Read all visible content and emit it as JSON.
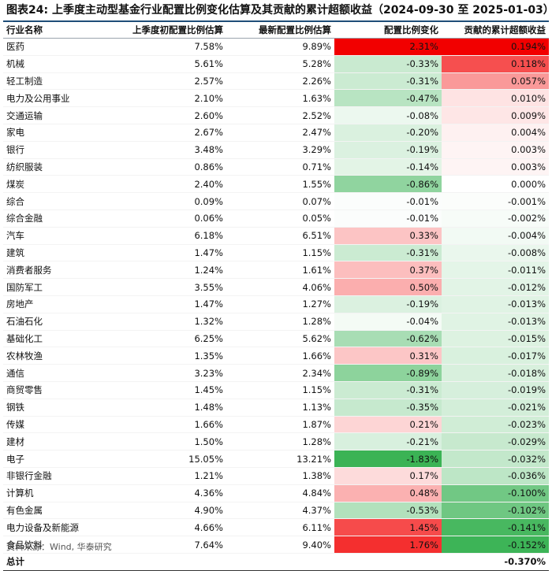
{
  "title": "图表24:  上季度主动型基金行业配置比例变化估算及其贡献的累计超额收益（2024-09-30 至 2025-01-03）",
  "headers": [
    "行业名称",
    "上季度初配置比例估算",
    "最新配置比例估算",
    "配置比例变化",
    "贡献的累计超额收益"
  ],
  "rows": [
    {
      "name": "医药",
      "prev": "7.58%",
      "latest": "9.89%",
      "change": "2.31%",
      "contrib": "0.194%"
    },
    {
      "name": "机械",
      "prev": "5.61%",
      "latest": "5.28%",
      "change": "-0.33%",
      "contrib": "0.118%"
    },
    {
      "name": "轻工制造",
      "prev": "2.57%",
      "latest": "2.26%",
      "change": "-0.31%",
      "contrib": "0.057%"
    },
    {
      "name": "电力及公用事业",
      "prev": "2.10%",
      "latest": "1.63%",
      "change": "-0.47%",
      "contrib": "0.010%"
    },
    {
      "name": "交通运输",
      "prev": "2.60%",
      "latest": "2.52%",
      "change": "-0.08%",
      "contrib": "0.009%"
    },
    {
      "name": "家电",
      "prev": "2.67%",
      "latest": "2.47%",
      "change": "-0.20%",
      "contrib": "0.004%"
    },
    {
      "name": "银行",
      "prev": "3.48%",
      "latest": "3.29%",
      "change": "-0.19%",
      "contrib": "0.003%"
    },
    {
      "name": "纺织服装",
      "prev": "0.86%",
      "latest": "0.71%",
      "change": "-0.14%",
      "contrib": "0.003%"
    },
    {
      "name": "煤炭",
      "prev": "2.40%",
      "latest": "1.55%",
      "change": "-0.86%",
      "contrib": "0.000%"
    },
    {
      "name": "综合",
      "prev": "0.09%",
      "latest": "0.07%",
      "change": "-0.01%",
      "contrib": "-0.001%"
    },
    {
      "name": "综合金融",
      "prev": "0.06%",
      "latest": "0.05%",
      "change": "-0.01%",
      "contrib": "-0.002%"
    },
    {
      "name": "汽车",
      "prev": "6.18%",
      "latest": "6.51%",
      "change": "0.33%",
      "contrib": "-0.004%"
    },
    {
      "name": "建筑",
      "prev": "1.47%",
      "latest": "1.15%",
      "change": "-0.31%",
      "contrib": "-0.008%"
    },
    {
      "name": "消费者服务",
      "prev": "1.24%",
      "latest": "1.61%",
      "change": "0.37%",
      "contrib": "-0.011%"
    },
    {
      "name": "国防军工",
      "prev": "3.55%",
      "latest": "4.06%",
      "change": "0.50%",
      "contrib": "-0.012%"
    },
    {
      "name": "房地产",
      "prev": "1.47%",
      "latest": "1.27%",
      "change": "-0.19%",
      "contrib": "-0.013%"
    },
    {
      "name": "石油石化",
      "prev": "1.32%",
      "latest": "1.28%",
      "change": "-0.04%",
      "contrib": "-0.013%"
    },
    {
      "name": "基础化工",
      "prev": "6.25%",
      "latest": "5.62%",
      "change": "-0.62%",
      "contrib": "-0.015%"
    },
    {
      "name": "农林牧渔",
      "prev": "1.35%",
      "latest": "1.66%",
      "change": "0.31%",
      "contrib": "-0.017%"
    },
    {
      "name": "通信",
      "prev": "3.23%",
      "latest": "2.34%",
      "change": "-0.89%",
      "contrib": "-0.018%"
    },
    {
      "name": "商贸零售",
      "prev": "1.45%",
      "latest": "1.15%",
      "change": "-0.31%",
      "contrib": "-0.019%"
    },
    {
      "name": "钢铁",
      "prev": "1.48%",
      "latest": "1.13%",
      "change": "-0.35%",
      "contrib": "-0.021%"
    },
    {
      "name": "传媒",
      "prev": "1.66%",
      "latest": "1.87%",
      "change": "0.21%",
      "contrib": "-0.023%"
    },
    {
      "name": "建材",
      "prev": "1.50%",
      "latest": "1.28%",
      "change": "-0.21%",
      "contrib": "-0.029%"
    },
    {
      "name": "电子",
      "prev": "15.05%",
      "latest": "13.21%",
      "change": "-1.83%",
      "contrib": "-0.032%"
    },
    {
      "name": "非银行金融",
      "prev": "1.21%",
      "latest": "1.38%",
      "change": "0.17%",
      "contrib": "-0.036%"
    },
    {
      "name": "计算机",
      "prev": "4.36%",
      "latest": "4.84%",
      "change": "0.48%",
      "contrib": "-0.100%"
    },
    {
      "name": "有色金属",
      "prev": "4.90%",
      "latest": "4.37%",
      "change": "-0.53%",
      "contrib": "-0.102%"
    },
    {
      "name": "电力设备及新能源",
      "prev": "4.66%",
      "latest": "6.11%",
      "change": "1.45%",
      "contrib": "-0.141%"
    },
    {
      "name": "食品饮料",
      "prev": "7.64%",
      "latest": "9.40%",
      "change": "1.76%",
      "contrib": "-0.152%"
    }
  ],
  "total": {
    "label": "总计",
    "contrib": "-0.370%"
  },
  "source": "资料来源：Wind, 华泰研究",
  "colors": {
    "change_max_positive": "#f20000",
    "change_max_negative": "#16a535",
    "contrib_max_positive": "#f20000",
    "contrib_max_negative": "#16a535",
    "title_rule": "#1f4e79"
  },
  "scales": {
    "change_abs_max": 2.31,
    "contrib_abs_max": 0.194
  }
}
